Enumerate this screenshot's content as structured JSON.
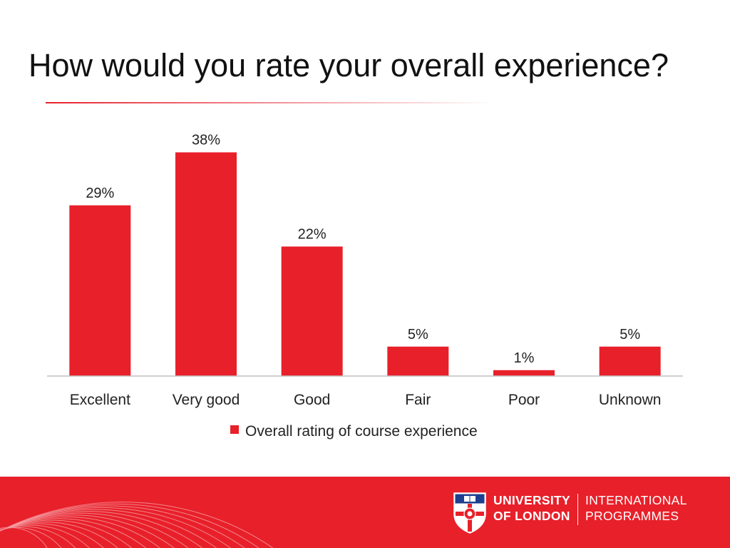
{
  "slide": {
    "title": "How would you rate your overall experience?"
  },
  "colors": {
    "accent": "#e8202a",
    "text": "#111111",
    "axis": "#bfbfbf"
  },
  "chart_data": {
    "type": "bar",
    "categories": [
      "Excellent",
      "Very good",
      "Good",
      "Fair",
      "Poor",
      "Unknown"
    ],
    "series": [
      {
        "name": "Overall rating of course experience",
        "values": [
          29,
          38,
          22,
          5,
          1,
          5
        ]
      }
    ],
    "data_labels": [
      "29%",
      "38%",
      "22%",
      "5%",
      "1%",
      "5%"
    ],
    "title": "",
    "xlabel": "",
    "ylabel": "",
    "ylim": [
      0,
      40
    ],
    "grid": false,
    "legend": "bottom"
  },
  "logo": {
    "line1": "UNIVERSITY",
    "line2": "OF LONDON",
    "line3": "INTERNATIONAL",
    "line4": "PROGRAMMES"
  }
}
